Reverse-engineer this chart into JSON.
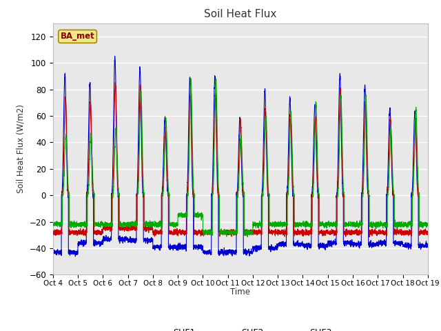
{
  "title": "Soil Heat Flux",
  "ylabel": "Soil Heat Flux (W/m2)",
  "xlabel": "Time",
  "ylim": [
    -60,
    130
  ],
  "yticks": [
    -60,
    -40,
    -20,
    0,
    20,
    40,
    60,
    80,
    100,
    120
  ],
  "colors": {
    "SHF1": "#cc0000",
    "SHF2": "#0000cc",
    "SHF3": "#00aa00"
  },
  "station_label": "BA_met",
  "fig_bg": "#ffffff",
  "plot_bg": "#e8e8e8",
  "n_days": 15,
  "start_day": 4,
  "points_per_day": 288,
  "day_peaks_shf2": [
    92,
    85,
    104,
    97,
    58,
    89,
    89,
    58,
    80,
    73,
    68,
    91,
    82,
    65,
    63
  ],
  "day_peaks_shf1": [
    75,
    70,
    84,
    83,
    50,
    79,
    77,
    57,
    65,
    60,
    58,
    80,
    70,
    58,
    55
  ],
  "day_peaks_shf3": [
    46,
    44,
    50,
    78,
    57,
    87,
    88,
    45,
    60,
    62,
    70,
    76,
    75,
    50,
    65
  ],
  "day_troughs_shf2": [
    -43,
    -36,
    -33,
    -34,
    -39,
    -39,
    -43,
    -43,
    -40,
    -37,
    -38,
    -36,
    -37,
    -36,
    -38
  ],
  "day_troughs_shf1": [
    -28,
    -28,
    -25,
    -25,
    -28,
    -28,
    -28,
    -28,
    -28,
    -28,
    -28,
    -28,
    -28,
    -28,
    -28
  ],
  "day_troughs_shf3": [
    -22,
    -22,
    -22,
    -22,
    -22,
    -15,
    -28,
    -28,
    -22,
    -22,
    -22,
    -22,
    -22,
    -22,
    -22
  ]
}
